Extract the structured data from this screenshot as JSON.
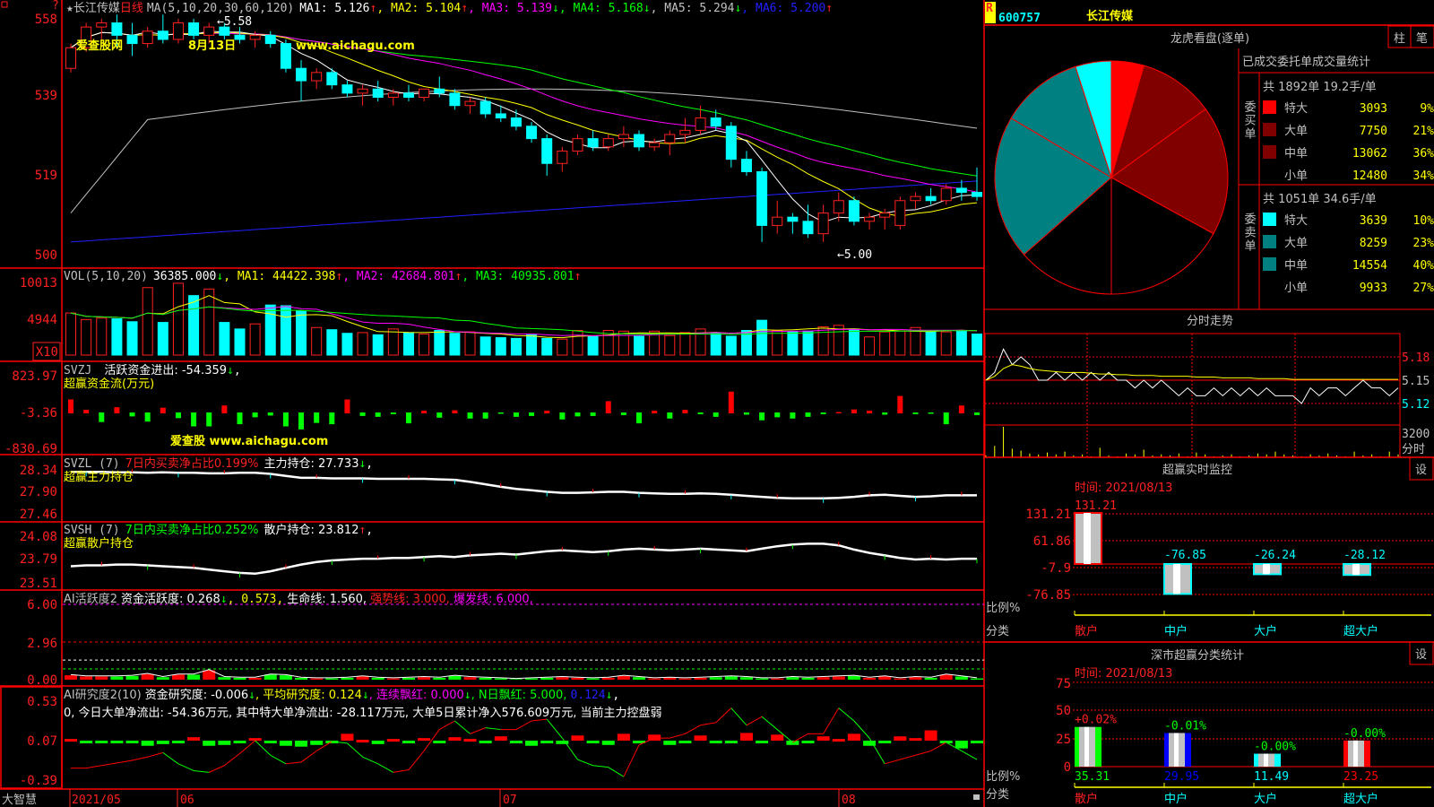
{
  "colors": {
    "up": "#ff2020",
    "down": "#00ffff",
    "ma1": "#ffffff",
    "ma2": "#ffff00",
    "ma3": "#ff00ff",
    "ma4": "#00ff00",
    "ma5": "#c0c0c0",
    "ma6": "#2020ff",
    "grid": "#ff0000"
  },
  "main": {
    "star": "★",
    "stock_name": "长江传媒",
    "period": "日线",
    "ma_params": "MA(5,10,20,30,60,120)",
    "ma1": "MA1: 5.126",
    "ma2": ", MA2: 5.104",
    "ma3": ", MA3: 5.139",
    "ma4": ", MA4: 5.168",
    "ma5": ", MA5: 5.294",
    "ma6": ", MA6: 5.200",
    "up": "↑",
    "down": "↓",
    "comma": ",",
    "axis": [
      "558",
      "539",
      "519",
      "500"
    ],
    "high_label": "←5.58",
    "low_label": "←5.00",
    "watermark1": "爱查股网",
    "watermark2": "8月13日",
    "watermark3": "www.aichagu.com",
    "question": "?"
  },
  "chart_data": {
    "type": "candlestick",
    "ylim": [
      5.0,
      5.58
    ],
    "ohlc": [
      [
        5.45,
        5.51,
        5.44,
        5.5
      ],
      [
        5.5,
        5.56,
        5.49,
        5.55
      ],
      [
        5.55,
        5.57,
        5.52,
        5.56
      ],
      [
        5.56,
        5.58,
        5.5,
        5.53
      ],
      [
        5.53,
        5.56,
        5.48,
        5.51
      ],
      [
        5.51,
        5.55,
        5.5,
        5.54
      ],
      [
        5.54,
        5.58,
        5.51,
        5.52
      ],
      [
        5.52,
        5.57,
        5.51,
        5.56
      ],
      [
        5.56,
        5.57,
        5.52,
        5.53
      ],
      [
        5.53,
        5.56,
        5.51,
        5.55
      ],
      [
        5.55,
        5.56,
        5.52,
        5.53
      ],
      [
        5.53,
        5.55,
        5.51,
        5.52
      ],
      [
        5.52,
        5.54,
        5.5,
        5.53
      ],
      [
        5.53,
        5.54,
        5.5,
        5.51
      ],
      [
        5.51,
        5.52,
        5.44,
        5.45
      ],
      [
        5.45,
        5.47,
        5.37,
        5.42
      ],
      [
        5.42,
        5.45,
        5.4,
        5.44
      ],
      [
        5.44,
        5.45,
        5.4,
        5.41
      ],
      [
        5.41,
        5.42,
        5.38,
        5.39
      ],
      [
        5.39,
        5.41,
        5.36,
        5.4
      ],
      [
        5.4,
        5.42,
        5.37,
        5.38
      ],
      [
        5.38,
        5.4,
        5.36,
        5.39
      ],
      [
        5.39,
        5.41,
        5.37,
        5.38
      ],
      [
        5.38,
        5.4,
        5.37,
        5.4
      ],
      [
        5.4,
        5.43,
        5.38,
        5.39
      ],
      [
        5.39,
        5.4,
        5.35,
        5.36
      ],
      [
        5.36,
        5.38,
        5.34,
        5.37
      ],
      [
        5.37,
        5.38,
        5.33,
        5.34
      ],
      [
        5.34,
        5.36,
        5.32,
        5.33
      ],
      [
        5.33,
        5.35,
        5.3,
        5.31
      ],
      [
        5.31,
        5.32,
        5.27,
        5.28
      ],
      [
        5.28,
        5.29,
        5.19,
        5.22
      ],
      [
        5.22,
        5.26,
        5.2,
        5.25
      ],
      [
        5.25,
        5.29,
        5.24,
        5.28
      ],
      [
        5.28,
        5.3,
        5.25,
        5.26
      ],
      [
        5.26,
        5.29,
        5.25,
        5.28
      ],
      [
        5.28,
        5.31,
        5.26,
        5.29
      ],
      [
        5.29,
        5.3,
        5.25,
        5.26
      ],
      [
        5.26,
        5.28,
        5.25,
        5.27
      ],
      [
        5.27,
        5.3,
        5.24,
        5.29
      ],
      [
        5.29,
        5.33,
        5.27,
        5.3
      ],
      [
        5.3,
        5.36,
        5.29,
        5.33
      ],
      [
        5.33,
        5.35,
        5.3,
        5.31
      ],
      [
        5.31,
        5.32,
        5.21,
        5.23
      ],
      [
        5.23,
        5.25,
        5.19,
        5.2
      ],
      [
        5.2,
        5.21,
        5.03,
        5.07
      ],
      [
        5.07,
        5.13,
        5.05,
        5.09
      ],
      [
        5.09,
        5.1,
        5.05,
        5.08
      ],
      [
        5.08,
        5.12,
        5.04,
        5.05
      ],
      [
        5.05,
        5.12,
        5.03,
        5.1
      ],
      [
        5.1,
        5.15,
        5.08,
        5.13
      ],
      [
        5.13,
        5.14,
        5.07,
        5.08
      ],
      [
        5.08,
        5.1,
        5.06,
        5.09
      ],
      [
        5.09,
        5.11,
        5.06,
        5.1
      ],
      [
        5.07,
        5.14,
        5.06,
        5.13
      ],
      [
        5.13,
        5.15,
        5.11,
        5.14
      ],
      [
        5.14,
        5.16,
        5.12,
        5.13
      ],
      [
        5.13,
        5.17,
        5.12,
        5.16
      ],
      [
        5.16,
        5.18,
        5.13,
        5.15
      ],
      [
        5.15,
        5.21,
        5.13,
        5.14
      ]
    ],
    "volume": [
      5800,
      4900,
      5100,
      5000,
      4600,
      9300,
      4500,
      9900,
      8200,
      9100,
      4500,
      3600,
      4300,
      6900,
      6800,
      6100,
      3800,
      3500,
      3000,
      3100,
      2800,
      3600,
      3100,
      2900,
      3400,
      3000,
      3200,
      2500,
      2400,
      2300,
      2800,
      2300,
      2200,
      3400,
      2600,
      3400,
      3300,
      2600,
      3300,
      2700,
      3100,
      3600,
      3000,
      2600,
      3400,
      4800,
      3400,
      3200,
      3300,
      3900,
      4100,
      3600,
      2500,
      3200,
      3300,
      3800,
      3400,
      3200,
      3400,
      2900
    ],
    "svzj": [
      300,
      60,
      -200,
      120,
      -70,
      -190,
      110,
      -110,
      -300,
      -300,
      160,
      -250,
      -90,
      -50,
      -300,
      -370,
      -220,
      -250,
      300,
      -60,
      -80,
      -20,
      -230,
      40,
      -100,
      50,
      -120,
      -120,
      -10,
      -80,
      -60,
      40,
      -140,
      -70,
      -60,
      260,
      -40,
      -230,
      40,
      -120,
      60,
      -20,
      -80,
      480,
      -30,
      -160,
      -90,
      -120,
      -80,
      -20,
      10,
      70,
      40,
      -30,
      380,
      -20,
      -10,
      -250,
      160,
      -40
    ],
    "svzl": [
      28.3,
      28.3,
      28.3,
      28.29,
      28.29,
      28.28,
      28.29,
      28.28,
      28.28,
      28.27,
      28.27,
      28.28,
      28.28,
      28.26,
      28.22,
      28.18,
      28.18,
      28.17,
      28.17,
      28.17,
      28.16,
      28.16,
      28.16,
      28.16,
      28.15,
      28.14,
      28.1,
      28.05,
      28.0,
      27.96,
      27.93,
      27.9,
      27.88,
      27.88,
      27.89,
      27.9,
      27.9,
      27.88,
      27.87,
      27.86,
      27.86,
      27.87,
      27.86,
      27.84,
      27.82,
      27.8,
      27.78,
      27.77,
      27.77,
      27.77,
      27.78,
      27.8,
      27.83,
      27.84,
      27.82,
      27.8,
      27.81,
      27.83,
      27.83,
      27.83
    ],
    "svsh": [
      23.72,
      23.73,
      23.73,
      23.74,
      23.74,
      23.73,
      23.72,
      23.71,
      23.7,
      23.68,
      23.66,
      23.64,
      23.63,
      23.66,
      23.7,
      23.74,
      23.77,
      23.79,
      23.8,
      23.81,
      23.81,
      23.82,
      23.82,
      23.83,
      23.84,
      23.83,
      23.85,
      23.86,
      23.87,
      23.86,
      23.88,
      23.9,
      23.91,
      23.9,
      23.89,
      23.9,
      23.92,
      23.93,
      23.92,
      23.91,
      23.92,
      23.93,
      23.92,
      23.91,
      23.9,
      23.93,
      23.96,
      23.98,
      23.99,
      23.99,
      23.97,
      23.92,
      23.88,
      23.85,
      23.82,
      23.8,
      23.81,
      23.8,
      23.81,
      23.81
    ],
    "ai_activity": [
      0.35,
      0.25,
      0.25,
      0.25,
      0.3,
      0.45,
      0.2,
      0.4,
      0.4,
      0.75,
      0.2,
      0.15,
      0.15,
      0.4,
      0.35,
      0.15,
      0.1,
      0.1,
      0.15,
      0.25,
      0.15,
      0.1,
      0.15,
      0.2,
      0.15,
      0.3,
      0.2,
      0.15,
      0.1,
      0.05,
      0.1,
      0.15,
      0.2,
      0.15,
      0.1,
      0.15,
      0.3,
      0.2,
      0.1,
      0.15,
      0.1,
      0.15,
      0.2,
      0.25,
      0.2,
      0.1,
      0.1,
      0.2,
      0.15,
      0.2,
      0.25,
      0.3,
      0.15,
      0.25,
      0.1,
      0.2,
      0.15,
      0.4,
      0.25,
      0.1
    ],
    "ai_activity_lines": {
      "life": 1.56,
      "strong": 3.0,
      "burst": 6.0,
      "avg": 0.573
    },
    "ai_research_bars": [
      0.02,
      -0.02,
      -0.02,
      -0.02,
      -0.02,
      -0.06,
      -0.04,
      -0.02,
      0.04,
      -0.06,
      -0.05,
      -0.03,
      0.03,
      -0.02,
      -0.06,
      -0.07,
      -0.05,
      -0.02,
      0.08,
      0.01,
      -0.04,
      0.02,
      -0.02,
      0.03,
      -0.02,
      0.04,
      0.02,
      -0.03,
      0.05,
      -0.03,
      -0.06,
      -0.02,
      -0.04,
      0.06,
      -0.02,
      -0.05,
      0.08,
      -0.02,
      0.07,
      -0.05,
      -0.02,
      0.06,
      -0.03,
      -0.02,
      0.09,
      -0.02,
      0.07,
      -0.05,
      -0.02,
      0.05,
      0.02,
      0.08,
      -0.06,
      -0.02,
      0.05,
      0.03,
      0.12,
      -0.02,
      -0.09,
      -0.02
    ],
    "ai_research_line": [
      -0.25,
      -0.25,
      -0.22,
      -0.19,
      -0.16,
      -0.12,
      -0.07,
      -0.2,
      -0.28,
      -0.3,
      -0.22,
      -0.08,
      0.07,
      -0.1,
      -0.2,
      -0.18,
      -0.05,
      0.06,
      0.04,
      -0.12,
      -0.2,
      -0.3,
      -0.27,
      -0.05,
      0.2,
      0.3,
      0.15,
      0.22,
      0.2,
      0.2,
      0.3,
      0.32,
      0.1,
      -0.15,
      -0.22,
      -0.24,
      -0.35,
      0.02,
      0.1,
      0.1,
      0.15,
      0.25,
      0.28,
      0.45,
      0.25,
      0.35,
      0.2,
      0.05,
      0.15,
      0.15,
      0.45,
      0.3,
      0.1,
      -0.2,
      -0.15,
      -0.1,
      -0.05,
      0.05,
      -0.05,
      -0.15
    ]
  },
  "vol": {
    "label": "VOL(5,10,20)",
    "value": "36385.000",
    "ma1": ", MA1: 44422.398",
    "ma2": ", MA2: 42684.801",
    "ma3": ", MA3: 40935.801",
    "axis": [
      "10013",
      "4944"
    ],
    "unit": "X10"
  },
  "svzj": {
    "label": "SVZJ",
    "value": "活跃资金进出: -54.359",
    "comma": ",",
    "subtitle": "超赢资金流(万元)",
    "axis": [
      "823.97",
      "-3.36",
      "-830.69"
    ],
    "watermark": "爱查股 www.aichagu.com"
  },
  "svzl": {
    "label": "SVZL (7)",
    "ratio": "7日内买卖净占比0.199%",
    "value": "主力持仓: 27.733",
    "subtitle": "超赢主力持仓",
    "axis": [
      "28.34",
      "27.90",
      "27.46"
    ]
  },
  "svsh": {
    "label": "SVSH (7)",
    "ratio": "7日内买卖净占比0.252%",
    "value": "散户持仓: 23.812",
    "subtitle": "超赢散户持仓",
    "axis": [
      "24.08",
      "23.79",
      "23.51"
    ]
  },
  "ai1": {
    "label": "AI活跃度2",
    "value": "资金活跃度: 0.268",
    "v2": ", 0.573,",
    "life": "生命线: 1.560,",
    "strong": "强势线: 3.000,",
    "burst": "爆发线: 6.000,",
    "axis": [
      "6.00",
      "2.96",
      "0.00"
    ]
  },
  "ai2": {
    "label": "AI研究度2(10)",
    "value": "资金研究度: -0.006",
    "avg": ", 平均研究度: 0.124",
    "cont": ", 连续飘红: 0.000",
    "nday": ", N日飘红: 5.000,",
    "v5": "0.124",
    "comma": ",",
    "summary": "0, 今日大单净流出: -54.36万元, 其中特大单净流出: -28.117万元, 大单5日累计净入576.609万元, 当前主力控盘弱",
    "axis": [
      "0.53",
      "0.07",
      "-0.39"
    ]
  },
  "footer": {
    "brand": "大智慧",
    "dates": [
      "2021/05",
      "06",
      "07",
      "08"
    ]
  },
  "right": {
    "r_badge": "R",
    "code": "600757",
    "name": "长江传媒",
    "panel_title": "龙虎看盘(逐单)",
    "btn_bar": "柱",
    "btn_tick": "笔",
    "stats_title": "已成交委托单成交量统计",
    "buy": {
      "label": "委买单",
      "summary": "共 1892单 19.2手/单",
      "rows": [
        {
          "name": "特大",
          "vol": "3093",
          "pct": "9%",
          "value": 9,
          "color": "#ff0000"
        },
        {
          "name": "大单",
          "vol": "7750",
          "pct": "21%",
          "value": 21,
          "color": "#800000"
        },
        {
          "name": "中单",
          "vol": "13062",
          "pct": "36%",
          "value": 36,
          "color": "#800000"
        },
        {
          "name": "小单",
          "vol": "12480",
          "pct": "34%",
          "value": 34,
          "color": "#000000"
        }
      ]
    },
    "sell": {
      "label": "委卖单",
      "summary": "共 1051单 34.6手/单",
      "rows": [
        {
          "name": "特大",
          "vol": "3639",
          "pct": "10%",
          "value": 10,
          "color": "#00ffff"
        },
        {
          "name": "大单",
          "vol": "8259",
          "pct": "23%",
          "value": 23,
          "color": "#008080"
        },
        {
          "name": "中单",
          "vol": "14554",
          "pct": "40%",
          "value": 40,
          "color": "#008080"
        },
        {
          "name": "小单",
          "vol": "9933",
          "pct": "27%",
          "value": 27,
          "color": "#000000"
        }
      ]
    },
    "minute": {
      "title": "分时走势",
      "axis": [
        "5.18",
        "5.15",
        "5.12"
      ],
      "vol_axis": "3200",
      "vol_label": "分时",
      "price": [
        5.15,
        5.16,
        5.19,
        5.17,
        5.18,
        5.17,
        5.15,
        5.15,
        5.16,
        5.15,
        5.16,
        5.15,
        5.16,
        5.15,
        5.16,
        5.15,
        5.15,
        5.14,
        5.15,
        5.14,
        5.15,
        5.14,
        5.13,
        5.14,
        5.13,
        5.13,
        5.14,
        5.13,
        5.14,
        5.13,
        5.14,
        5.13,
        5.14,
        5.13,
        5.13,
        5.13,
        5.12,
        5.14,
        5.13,
        5.14,
        5.14,
        5.13,
        5.14,
        5.15,
        5.14,
        5.14,
        5.13,
        5.14
      ],
      "avg": [
        5.15,
        5.155,
        5.165,
        5.17,
        5.168,
        5.165,
        5.163,
        5.162,
        5.161,
        5.16,
        5.16,
        5.16,
        5.159,
        5.158,
        5.158,
        5.157,
        5.157,
        5.156,
        5.156,
        5.156,
        5.155,
        5.155,
        5.155,
        5.155,
        5.154,
        5.154,
        5.154,
        5.153,
        5.153,
        5.153,
        5.153,
        5.152,
        5.152,
        5.152,
        5.152,
        5.151,
        5.151,
        5.151,
        5.151,
        5.151,
        5.151,
        5.151,
        5.151,
        5.151,
        5.151,
        5.151,
        5.151,
        5.151
      ],
      "volume": [
        200,
        1200,
        3200,
        900,
        700,
        400,
        300,
        500,
        300,
        600,
        200,
        300,
        100,
        1000,
        200,
        100,
        400,
        300,
        800,
        200,
        300,
        200,
        400,
        100,
        500,
        300,
        100,
        200,
        300,
        100,
        200,
        400,
        300,
        600,
        300,
        200,
        100,
        300,
        200,
        400,
        200,
        100,
        600,
        200,
        300,
        100,
        600,
        300
      ]
    },
    "monitor": {
      "title": "超赢实时监控",
      "set": "设",
      "time": "时间: 2021/08/13",
      "axis": [
        "131.21",
        "61.86",
        "-7.9",
        "-76.85"
      ],
      "ratio_label": "比例%",
      "class_label": "分类",
      "bars": [
        {
          "name": "散户",
          "value": 131.21,
          "label": "131.21"
        },
        {
          "name": "中户",
          "value": -76.85,
          "label": "-76.85"
        },
        {
          "name": "大户",
          "value": -26.24,
          "label": "-26.24"
        },
        {
          "name": "超大户",
          "value": -28.12,
          "label": "-28.12"
        }
      ]
    },
    "sz": {
      "title": "深市超赢分类统计",
      "set": "设",
      "time": "时间: 2021/08/13",
      "axis": [
        "75",
        "50",
        "25",
        "0"
      ],
      "ratio_label": "比例%",
      "class_label": "分类",
      "bars": [
        {
          "name": "散户",
          "value": 35.31,
          "label": "35.31",
          "change": "+0.02%",
          "color": "#00ff00"
        },
        {
          "name": "中户",
          "value": 29.95,
          "label": "29.95",
          "change": "-0.01%",
          "color": "#0000ff"
        },
        {
          "name": "大户",
          "value": 11.49,
          "label": "11.49",
          "change": "-0.00%",
          "color": "#00ffff"
        },
        {
          "name": "超大户",
          "value": 23.25,
          "label": "23.25",
          "change": "-0.00%",
          "color": "#ff0000"
        }
      ]
    }
  }
}
